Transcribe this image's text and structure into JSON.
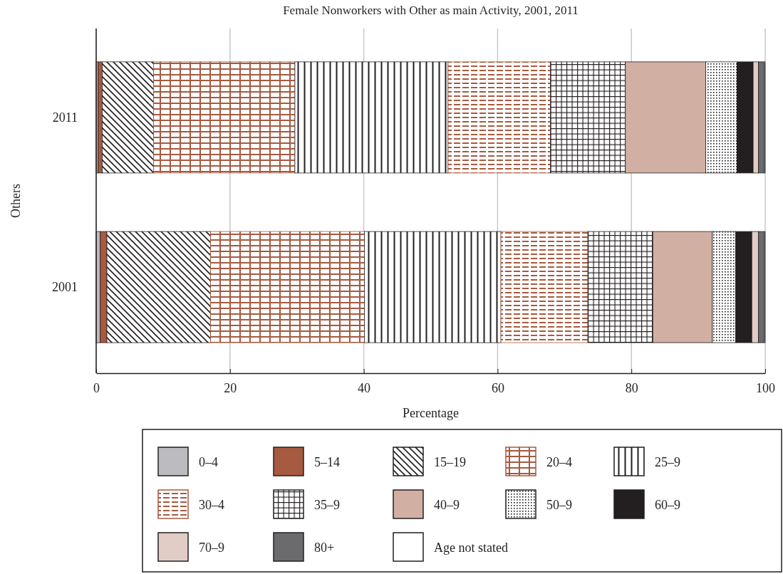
{
  "chart_data": {
    "type": "bar",
    "orientation": "horizontal",
    "stacked": true,
    "title": "Female Nonworkers with Other as main Activity, 2001, 2011",
    "xlabel": "Percentage",
    "ylabel": "Others",
    "categories": [
      "2011",
      "2001"
    ],
    "xlim": [
      0,
      100
    ],
    "xticks": [
      0,
      20,
      40,
      60,
      80,
      100
    ],
    "grid": "x",
    "legend": "bottom",
    "series": [
      {
        "name": "0–4",
        "color": "#bcbcc0",
        "values": [
          0.3,
          0.6
        ]
      },
      {
        "name": "5–14",
        "color": "#a65a40",
        "values": [
          0.6,
          1.0
        ]
      },
      {
        "name": "15–19",
        "color": "#231f20",
        "values": [
          7.7,
          15.5
        ]
      },
      {
        "name": "20–4",
        "color": "#a65a40",
        "values": [
          21.1,
          23.0
        ]
      },
      {
        "name": "25–9",
        "color": "#231f20",
        "values": [
          22.9,
          20.4
        ]
      },
      {
        "name": "30–4",
        "color": "#a65a40",
        "values": [
          15.3,
          13.0
        ]
      },
      {
        "name": "35–9",
        "color": "#231f20",
        "values": [
          11.2,
          9.7
        ]
      },
      {
        "name": "40–9",
        "color": "#d1afa3",
        "values": [
          12.0,
          8.9
        ]
      },
      {
        "name": "50–9",
        "color": "#231f20",
        "values": [
          4.7,
          3.5
        ]
      },
      {
        "name": "60–9",
        "color": "#231f20",
        "values": [
          2.4,
          2.4
        ]
      },
      {
        "name": "70–9",
        "color": "#e2cdc6",
        "values": [
          0.8,
          1.0
        ]
      },
      {
        "name": "80+",
        "color": "#6b6b6e",
        "values": [
          0.9,
          0.9
        ]
      },
      {
        "name": "Age not stated",
        "color": "#ffffff",
        "values": [
          0.1,
          0.1
        ]
      }
    ]
  }
}
